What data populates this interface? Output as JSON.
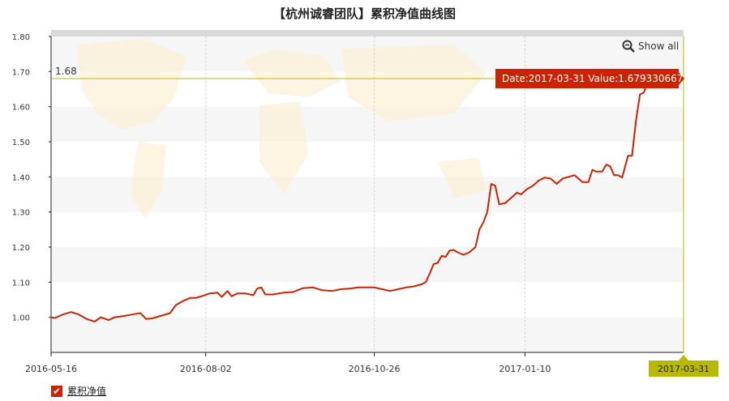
{
  "title": "【杭州诚睿团队】累积净值曲线图",
  "show_all_label": "Show all",
  "legend_label": "累积净值",
  "tooltip": {
    "date_prefix": "Date:",
    "value_prefix": "Value:",
    "date": "2017-03-31",
    "value": "1.679330667"
  },
  "reference_line_label": "1.68",
  "colors": {
    "series": "#cc2200",
    "reference": "#b8b800",
    "tooltip_bg": "#cc2200"
  },
  "chart_data": {
    "type": "line",
    "title": "【杭州诚睿团队】累积净值曲线图",
    "ylim": [
      0.9,
      1.8
    ],
    "yticks": [
      "1.00",
      "1.10",
      "1.20",
      "1.30",
      "1.40",
      "1.50",
      "1.60",
      "1.70",
      "1.80"
    ],
    "xlim": [
      "2016-05-16",
      "2017-03-31"
    ],
    "xticks": [
      "2016-05-16",
      "2016-08-02",
      "2016-10-26",
      "2017-01-10",
      "2017-03-31"
    ],
    "grid": true,
    "legend": "bottom-left",
    "series": [
      {
        "name": "累积净值",
        "points": [
          [
            "2016-05-16",
            1.0
          ],
          [
            "2016-05-18",
            0.998
          ],
          [
            "2016-05-22",
            1.008
          ],
          [
            "2016-05-26",
            1.015
          ],
          [
            "2016-05-30",
            1.008
          ],
          [
            "2016-06-03",
            0.995
          ],
          [
            "2016-06-07",
            0.988
          ],
          [
            "2016-06-10",
            1.0
          ],
          [
            "2016-06-14",
            0.992
          ],
          [
            "2016-06-17",
            1.0
          ],
          [
            "2016-06-21",
            1.003
          ],
          [
            "2016-06-26",
            1.008
          ],
          [
            "2016-06-30",
            1.012
          ],
          [
            "2016-07-03",
            0.995
          ],
          [
            "2016-07-06",
            0.997
          ],
          [
            "2016-07-11",
            1.005
          ],
          [
            "2016-07-15",
            1.012
          ],
          [
            "2016-07-18",
            1.035
          ],
          [
            "2016-07-21",
            1.045
          ],
          [
            "2016-07-25",
            1.055
          ],
          [
            "2016-07-28",
            1.055
          ],
          [
            "2016-08-01",
            1.062
          ],
          [
            "2016-08-04",
            1.068
          ],
          [
            "2016-08-08",
            1.07
          ],
          [
            "2016-08-10",
            1.058
          ],
          [
            "2016-08-13",
            1.075
          ],
          [
            "2016-08-15",
            1.06
          ],
          [
            "2016-08-18",
            1.068
          ],
          [
            "2016-08-22",
            1.068
          ],
          [
            "2016-08-26",
            1.063
          ],
          [
            "2016-08-28",
            1.082
          ],
          [
            "2016-08-30",
            1.085
          ],
          [
            "2016-09-01",
            1.065
          ],
          [
            "2016-09-05",
            1.065
          ],
          [
            "2016-09-10",
            1.07
          ],
          [
            "2016-09-15",
            1.072
          ],
          [
            "2016-09-20",
            1.083
          ],
          [
            "2016-09-25",
            1.085
          ],
          [
            "2016-09-30",
            1.077
          ],
          [
            "2016-10-05",
            1.075
          ],
          [
            "2016-10-09",
            1.08
          ],
          [
            "2016-10-14",
            1.082
          ],
          [
            "2016-10-18",
            1.085
          ],
          [
            "2016-10-22",
            1.085
          ],
          [
            "2016-10-26",
            1.085
          ],
          [
            "2016-10-30",
            1.08
          ],
          [
            "2016-11-03",
            1.075
          ],
          [
            "2016-11-07",
            1.08
          ],
          [
            "2016-11-11",
            1.085
          ],
          [
            "2016-11-15",
            1.088
          ],
          [
            "2016-11-19",
            1.094
          ],
          [
            "2016-11-21",
            1.1
          ],
          [
            "2016-11-23",
            1.125
          ],
          [
            "2016-11-25",
            1.152
          ],
          [
            "2016-11-27",
            1.155
          ],
          [
            "2016-11-29",
            1.175
          ],
          [
            "2016-12-01",
            1.172
          ],
          [
            "2016-12-03",
            1.19
          ],
          [
            "2016-12-05",
            1.192
          ],
          [
            "2016-12-07",
            1.185
          ],
          [
            "2016-12-10",
            1.178
          ],
          [
            "2016-12-13",
            1.185
          ],
          [
            "2016-12-16",
            1.2
          ],
          [
            "2016-12-18",
            1.25
          ],
          [
            "2016-12-20",
            1.27
          ],
          [
            "2016-12-22",
            1.3
          ],
          [
            "2016-12-24",
            1.38
          ],
          [
            "2016-12-26",
            1.375
          ],
          [
            "2016-12-28",
            1.322
          ],
          [
            "2016-12-31",
            1.325
          ],
          [
            "2017-01-03",
            1.34
          ],
          [
            "2017-01-06",
            1.355
          ],
          [
            "2017-01-08",
            1.35
          ],
          [
            "2017-01-11",
            1.365
          ],
          [
            "2017-01-14",
            1.375
          ],
          [
            "2017-01-17",
            1.39
          ],
          [
            "2017-01-20",
            1.398
          ],
          [
            "2017-01-23",
            1.395
          ],
          [
            "2017-01-26",
            1.38
          ],
          [
            "2017-01-29",
            1.395
          ],
          [
            "2017-02-01",
            1.4
          ],
          [
            "2017-02-04",
            1.405
          ],
          [
            "2017-02-06",
            1.395
          ],
          [
            "2017-02-08",
            1.385
          ],
          [
            "2017-02-11",
            1.385
          ],
          [
            "2017-02-13",
            1.42
          ],
          [
            "2017-02-15",
            1.415
          ],
          [
            "2017-02-18",
            1.415
          ],
          [
            "2017-02-20",
            1.435
          ],
          [
            "2017-02-22",
            1.43
          ],
          [
            "2017-02-24",
            1.405
          ],
          [
            "2017-02-26",
            1.405
          ],
          [
            "2017-02-28",
            1.398
          ],
          [
            "2017-03-03",
            1.46
          ],
          [
            "2017-03-05",
            1.46
          ],
          [
            "2017-03-07",
            1.56
          ],
          [
            "2017-03-09",
            1.635
          ],
          [
            "2017-03-11",
            1.64
          ],
          [
            "2017-03-13",
            1.675
          ],
          [
            "2017-03-31",
            1.679
          ]
        ]
      }
    ],
    "reference_line": {
      "value": 1.68,
      "label": "1.68"
    }
  }
}
